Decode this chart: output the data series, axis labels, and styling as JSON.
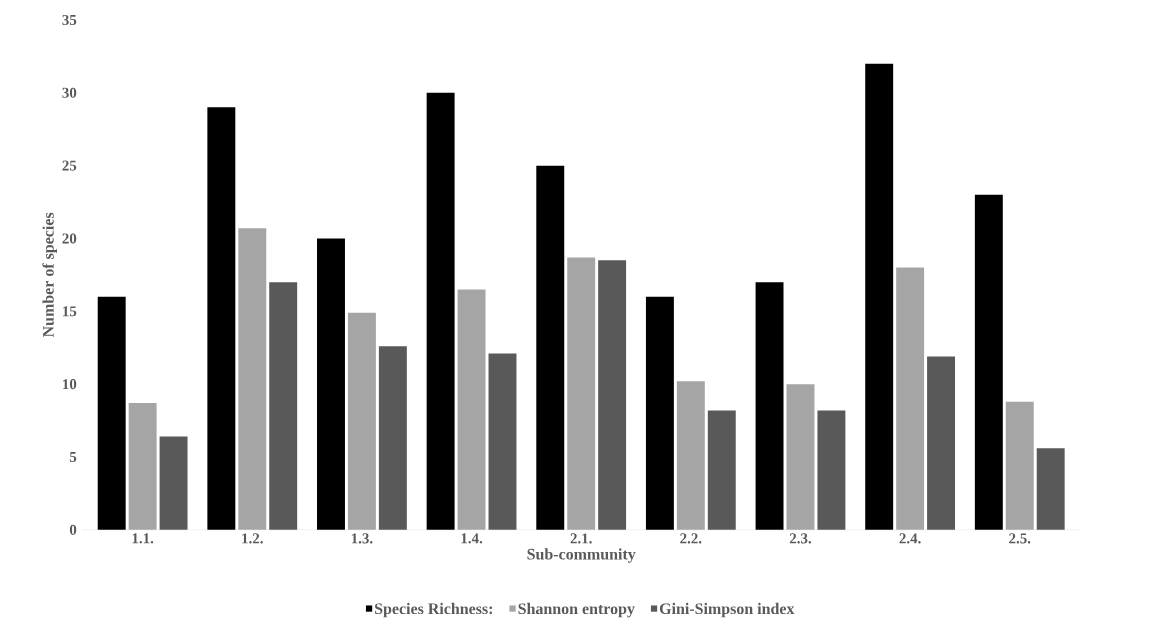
{
  "chart_data": {
    "type": "bar",
    "xlabel": "Sub-community",
    "ylabel": "Number of species",
    "categories": [
      "1.1.",
      "1.2.",
      "1.3.",
      "1.4.",
      "2.1.",
      "2.2.",
      "2.3.",
      "2.4.",
      "2.5."
    ],
    "series": [
      {
        "name": "Species Richness:",
        "color": "#000000",
        "values": [
          16,
          29,
          20,
          30,
          25,
          16,
          17,
          32,
          23
        ]
      },
      {
        "name": "Shannon entropy",
        "color": "#a5a5a5",
        "values": [
          8.7,
          20.7,
          14.9,
          16.5,
          18.7,
          10.2,
          10.0,
          18.0,
          8.8
        ]
      },
      {
        "name": "Gini-Simpson index",
        "color": "#595959",
        "values": [
          6.4,
          17.0,
          12.6,
          12.1,
          18.5,
          8.2,
          8.2,
          11.9,
          5.6
        ]
      }
    ],
    "ylim": [
      0,
      35
    ],
    "yticks": [
      0,
      5,
      10,
      15,
      20,
      25,
      30,
      35
    ],
    "grid": false,
    "legend": "bottom"
  }
}
